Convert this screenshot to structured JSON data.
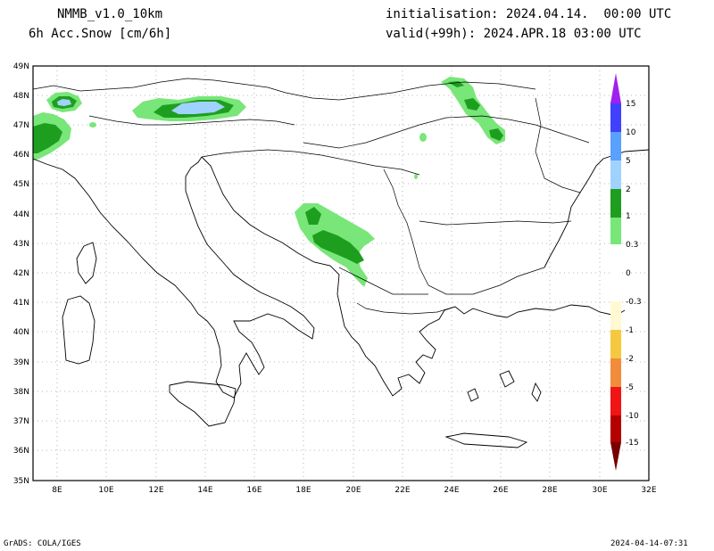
{
  "header": {
    "model": "NMMB_v1.0_10km",
    "variable": "6h Acc.Snow [cm/6h]",
    "init": "initialisation: 2024.04.14.  00:00 UTC",
    "valid": "valid(+99h): 2024.APR.18 03:00 UTC"
  },
  "footer": {
    "left": "GrADS: COLA/IGES",
    "right": "2024-04-14-07:31"
  },
  "map": {
    "lat_labels": [
      "49N",
      "48N",
      "47N",
      "46N",
      "45N",
      "44N",
      "43N",
      "42N",
      "41N",
      "40N",
      "39N",
      "38N",
      "37N",
      "36N",
      "35N"
    ],
    "lon_labels": [
      "8E",
      "10E",
      "12E",
      "14E",
      "16E",
      "18E",
      "20E",
      "22E",
      "24E",
      "26E",
      "28E",
      "30E",
      "32E"
    ],
    "lat_range": [
      35,
      49
    ],
    "lon_range": [
      7,
      32
    ],
    "grid": true,
    "land_color": "#ffffff",
    "border_color": "#000000"
  },
  "legend": {
    "placement": "right",
    "labels": [
      "15",
      "10",
      "5",
      "2",
      "1",
      "0.3",
      "0",
      "-0.3",
      "-1",
      "-2",
      "-5",
      "-10",
      "-15"
    ],
    "colors": {
      "purple": "#a020f0",
      "blue": "#4040ff",
      "mid_blue": "#5aa0ff",
      "light_blue": "#a0d2ff",
      "dark_green": "#1e9e1e",
      "light_green": "#78e678",
      "pale_yellow": "#fffad2",
      "yellow": "#f5c840",
      "orange": "#f08c3c",
      "red": "#f01414",
      "dark_red": "#b40000",
      "maroon": "#780000"
    }
  }
}
